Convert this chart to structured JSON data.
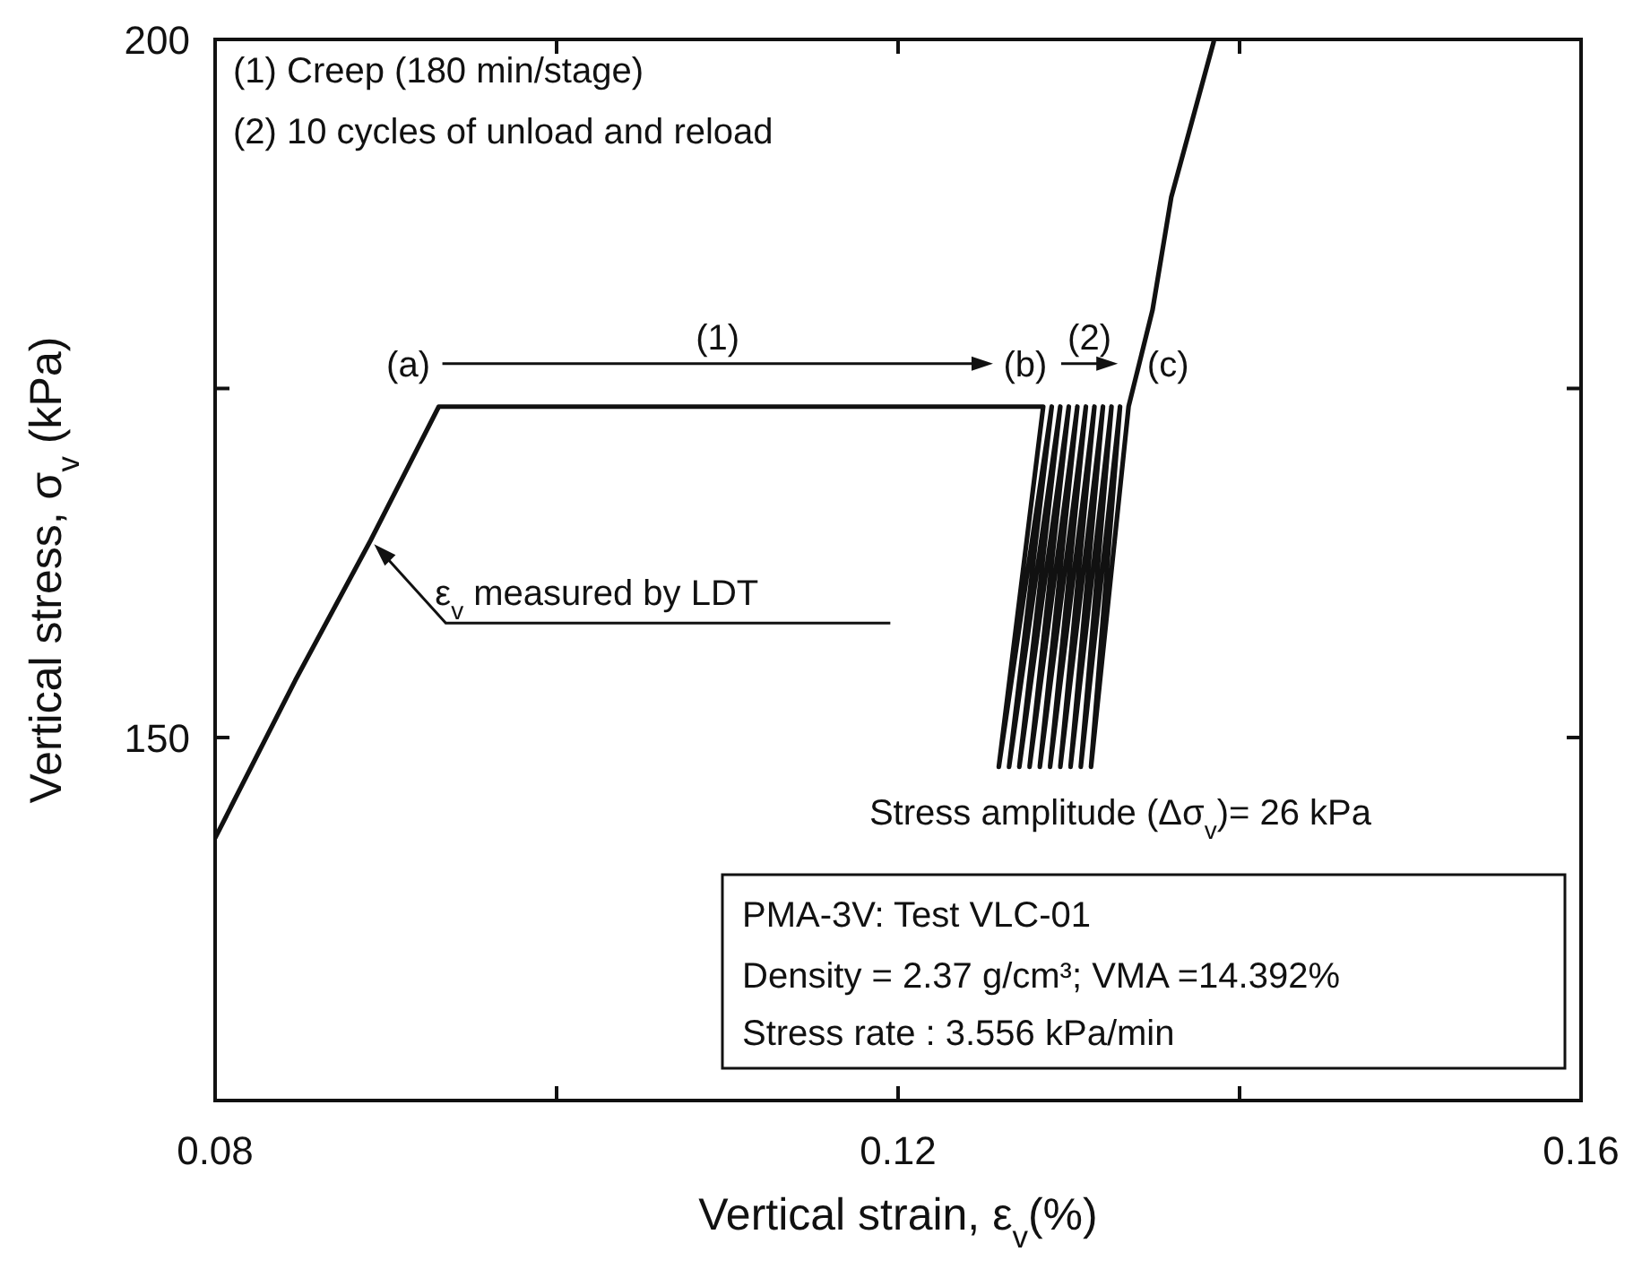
{
  "chart_data": {
    "type": "line",
    "xlabel": "Vertical strain, ε$_{v}$(%)",
    "ylabel": "Vertical stress, σ$_{v}$ (kPa)",
    "x": [
      0.08,
      0.0847,
      0.0891,
      0.0931,
      0.1285,
      0.1259,
      0.129,
      0.1265,
      0.1295,
      0.1271,
      0.13,
      0.1277,
      0.1305,
      0.1283,
      0.131,
      0.1289,
      0.1315,
      0.1295,
      0.132,
      0.1301,
      0.1325,
      0.1307,
      0.133,
      0.1313,
      0.1335,
      0.1349,
      0.136,
      0.1385
    ],
    "series": [
      {
        "color": "#111111",
        "values": [
          142.8,
          154.1,
          164.1,
          173.7,
          173.7,
          147.9,
          173.7,
          147.9,
          173.7,
          147.9,
          173.7,
          147.9,
          173.7,
          147.9,
          173.7,
          147.9,
          173.7,
          147.9,
          173.7,
          147.9,
          173.7,
          147.9,
          173.7,
          147.9,
          173.7,
          180.6,
          188.7,
          199.9
        ]
      }
    ],
    "xlim": [
      0.08,
      0.16
    ],
    "xticks": [
      0.08,
      {
        "value": 0.1,
        "label": null
      },
      0.12,
      {
        "value": 0.14,
        "label": null
      },
      0.16
    ],
    "ylim": [
      124,
      200
    ],
    "yticks": [
      150,
      {
        "value": 175,
        "label": null
      },
      200
    ],
    "grid": false,
    "legend": false,
    "marker": "none",
    "line_style": "solid",
    "annotations": [
      "(1) Creep (180 min/stage)",
      "(2) 10 cycles of unload and reload",
      {
        "text": "(a)",
        "x": 0.0931,
        "y": 173.7
      },
      {
        "text": "(b)",
        "x": 0.1285,
        "y": 173.7
      },
      {
        "text": "(c)",
        "x": 0.1335,
        "y": 173.7
      },
      "(1)",
      "(2)",
      {
        "text": "ε$_{v}$ measured by LDT",
        "x": 0.0891,
        "y": 164.1
      },
      "Stress amplitude (Δσ$_{v}$)= 26 kPa",
      "PMA-3V: Test VLC-01",
      "Density = 2.37 g/cm³; VMA =14.392%",
      "Stress rate : 3.556 kPa/min"
    ]
  }
}
